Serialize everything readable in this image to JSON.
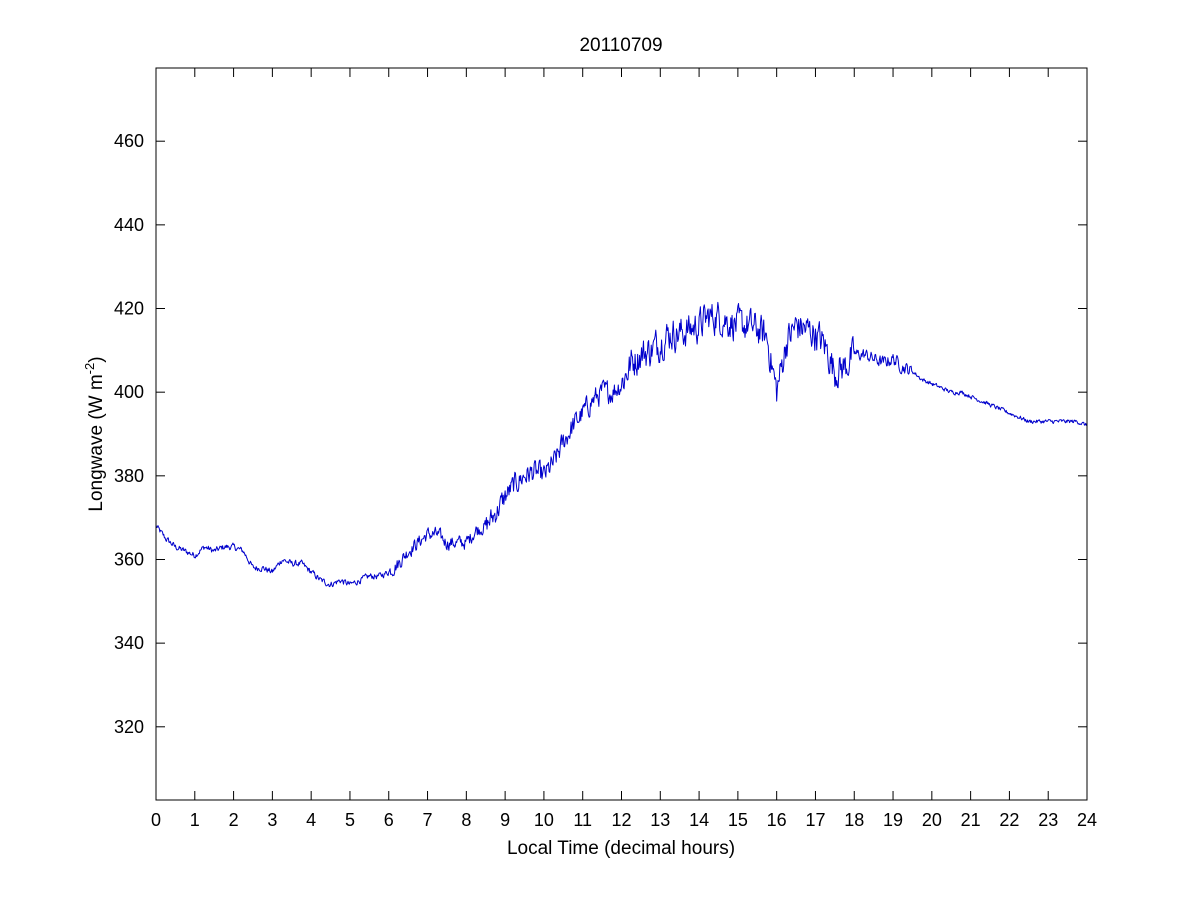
{
  "chart_data": {
    "type": "line",
    "title": "20110709",
    "xlabel": "Local Time (decimal hours)",
    "ylabel": {
      "prefix": "Longwave (W m",
      "superscript": "-2",
      "suffix": ")"
    },
    "xlim": [
      0,
      24
    ],
    "ylim": [
      302.5,
      477.5
    ],
    "xticks": [
      0,
      1,
      2,
      3,
      4,
      5,
      6,
      7,
      8,
      9,
      10,
      11,
      12,
      13,
      14,
      15,
      16,
      17,
      18,
      19,
      20,
      21,
      22,
      23,
      24
    ],
    "yticks": [
      320,
      340,
      360,
      380,
      400,
      420,
      440,
      460
    ],
    "grid": false,
    "series": [
      {
        "color": "#0000cc",
        "x": [
          0,
          0.25,
          0.5,
          0.75,
          1,
          1.25,
          1.5,
          1.75,
          2,
          2.25,
          2.5,
          2.75,
          3,
          3.25,
          3.5,
          3.75,
          4,
          4.25,
          4.5,
          4.75,
          5,
          5.25,
          5.5,
          5.75,
          6,
          6.25,
          6.5,
          6.75,
          7,
          7.25,
          7.5,
          7.75,
          8,
          8.25,
          8.5,
          8.75,
          9,
          9.25,
          9.5,
          9.75,
          10,
          10.25,
          10.5,
          10.75,
          11,
          11.25,
          11.5,
          11.75,
          12,
          12.25,
          12.5,
          12.75,
          13,
          13.25,
          13.5,
          13.75,
          14,
          14.25,
          14.5,
          14.75,
          15,
          15.25,
          15.5,
          15.75,
          16,
          16.25,
          16.5,
          16.75,
          17,
          17.25,
          17.5,
          17.75,
          18,
          18.25,
          18.5,
          18.75,
          19,
          19.25,
          19.5,
          19.75,
          20,
          20.25,
          20.5,
          20.75,
          21,
          21.25,
          21.5,
          21.75,
          22,
          22.25,
          22.5,
          22.75,
          23,
          23.25,
          23.5,
          23.75,
          24
        ],
        "y": [
          368,
          365,
          363,
          362,
          361,
          363,
          362,
          363,
          363,
          362,
          358,
          358,
          357,
          360,
          359,
          359,
          357,
          355,
          354,
          355,
          354,
          355,
          356,
          356,
          357,
          359,
          362,
          364,
          366,
          366,
          364,
          364,
          364,
          367,
          368,
          371,
          375,
          378,
          380,
          381,
          380,
          383,
          388,
          392,
          395,
          398,
          400,
          400,
          402,
          407,
          409,
          410,
          412,
          414,
          414,
          415,
          416,
          418,
          418,
          417,
          416,
          416,
          415,
          413,
          400,
          412,
          416,
          415,
          414,
          411,
          405,
          406,
          409,
          409,
          408,
          407,
          408,
          406,
          405,
          403,
          402,
          401,
          400,
          400,
          399,
          398,
          397,
          396,
          395,
          394,
          393,
          393,
          393,
          393,
          393,
          393,
          392
        ]
      }
    ]
  }
}
